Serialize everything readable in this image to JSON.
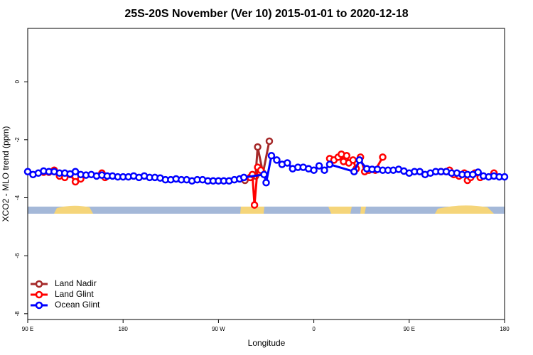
{
  "chart_data": {
    "type": "line",
    "title": "25S-20S November (Ver 10)   2015-01-01 to 2020-12-18",
    "x_label": "Longitude",
    "y_label": "XCO2 - MLO trend (ppm)",
    "xlim": [
      90,
      540
    ],
    "xticks": [
      {
        "value": 90,
        "label": "90 E"
      },
      {
        "value": 180,
        "label": "180"
      },
      {
        "value": 270,
        "label": "90 W"
      },
      {
        "value": 360,
        "label": "0"
      },
      {
        "value": 450,
        "label": "90 E"
      },
      {
        "value": 540,
        "label": "180"
      }
    ],
    "ylim": [
      -8.2,
      1.84
    ],
    "yticks": [
      0,
      -2,
      -4,
      -6,
      -8
    ],
    "legend": "bottom-left",
    "series": [
      {
        "name": "Land Nadir",
        "color": "#a52a2a",
        "x": [
          295,
          300,
          305,
          307,
          312,
          318
        ],
        "values": [
          -3.4,
          -3.3,
          -3.25,
          -2.25,
          -3.15,
          -2.05
        ]
      },
      {
        "name": "Land Glint",
        "color": "#ff0000",
        "x": [
          105,
          110,
          115,
          120,
          125,
          130,
          135,
          140,
          145,
          160,
          163,
          168,
          300,
          302,
          304,
          307,
          310,
          315,
          375,
          379,
          383,
          386,
          388,
          391,
          393,
          397,
          400,
          404,
          408,
          412,
          418,
          425,
          470,
          480,
          485,
          488,
          492,
          497,
          502,
          505,
          508,
          512,
          517,
          522,
          530
        ],
        "values": [
          -3.12,
          -3.12,
          -3.05,
          -3.25,
          -3.3,
          -3.2,
          -3.45,
          -3.35,
          null,
          -3.15,
          -3.3,
          null,
          -3.3,
          -3.2,
          -4.25,
          -2.95,
          -3.05,
          null,
          -2.65,
          -2.7,
          -2.6,
          -2.5,
          -2.75,
          -2.55,
          -2.8,
          -2.7,
          -3.0,
          -2.6,
          -3.1,
          -3.05,
          -3.05,
          -2.6,
          null,
          -3.1,
          -3.1,
          -3.05,
          -3.2,
          -3.25,
          -3.15,
          -3.4,
          -3.3,
          -3.15,
          -3.3,
          null,
          -3.15
        ]
      },
      {
        "name": "Ocean Glint",
        "color": "#0000ff",
        "x": [
          90,
          95,
          100,
          105,
          110,
          115,
          120,
          125,
          130,
          135,
          140,
          145,
          150,
          155,
          160,
          165,
          170,
          175,
          180,
          185,
          190,
          195,
          200,
          205,
          210,
          215,
          220,
          225,
          230,
          235,
          240,
          245,
          250,
          255,
          260,
          265,
          270,
          275,
          280,
          285,
          290,
          294,
          313,
          315,
          320,
          325,
          330,
          335,
          340,
          345,
          350,
          355,
          360,
          365,
          370,
          375,
          398,
          403,
          410,
          415,
          420,
          425,
          430,
          435,
          440,
          445,
          450,
          455,
          460,
          465,
          470,
          475,
          480,
          485,
          490,
          495,
          500,
          505,
          510,
          515,
          520,
          525,
          530,
          535,
          540
        ],
        "values": [
          -3.1,
          -3.2,
          -3.15,
          -3.08,
          -3.1,
          -3.1,
          -3.15,
          -3.15,
          -3.18,
          -3.1,
          -3.2,
          -3.22,
          -3.2,
          -3.25,
          -3.22,
          -3.25,
          -3.25,
          -3.28,
          -3.28,
          -3.28,
          -3.25,
          -3.3,
          -3.25,
          -3.3,
          -3.3,
          -3.32,
          -3.38,
          -3.38,
          -3.35,
          -3.38,
          -3.38,
          -3.42,
          -3.38,
          -3.38,
          -3.42,
          -3.42,
          -3.42,
          -3.42,
          -3.42,
          -3.38,
          -3.35,
          -3.3,
          -3.2,
          -3.48,
          -2.55,
          -2.7,
          -2.85,
          -2.8,
          -3.0,
          -2.95,
          -2.95,
          -3.0,
          -3.05,
          -2.9,
          -3.05,
          -2.85,
          -3.1,
          -2.7,
          -3.0,
          -3.02,
          -3.02,
          -3.05,
          -3.05,
          -3.05,
          -3.02,
          -3.08,
          -3.15,
          -3.1,
          -3.1,
          -3.2,
          -3.15,
          -3.1,
          -3.1,
          -3.1,
          -3.15,
          -3.15,
          -3.2,
          -3.2,
          -3.2,
          -3.12,
          -3.25,
          -3.28,
          -3.25,
          -3.28,
          -3.28
        ]
      }
    ]
  }
}
